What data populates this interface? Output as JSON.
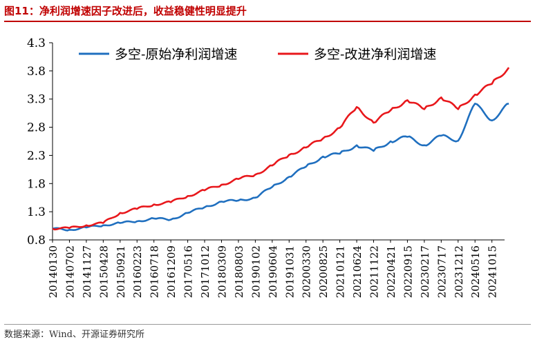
{
  "figure": {
    "title": "图11：净利润增速因子改进后，收益稳健性明显提升",
    "source": "数据来源：Wind、开源证券研究所"
  },
  "colors": {
    "series_original": "#1f6fbf",
    "series_improved": "#e8171b",
    "title": "#c00000",
    "axis": "#000000"
  },
  "chart_data": {
    "type": "line",
    "title": "",
    "xlabel": "",
    "ylabel": "",
    "ylim": [
      0.8,
      4.3
    ],
    "yticks": [
      0.8,
      1.3,
      1.8,
      2.3,
      2.8,
      3.3,
      3.8,
      4.3
    ],
    "ytick_labels": [
      "0.8",
      "1.3",
      "1.8",
      "2.3",
      "2.8",
      "3.3",
      "3.8",
      "4.3"
    ],
    "xticks": [
      "20140130",
      "20140702",
      "20141127",
      "20150428",
      "20150921",
      "20160223",
      "20160718",
      "20161209",
      "20170516",
      "20171012",
      "20180309",
      "20180803",
      "20190102",
      "20190604",
      "20191031",
      "20200330",
      "20200825",
      "20210121",
      "20210624",
      "20211122",
      "20220421",
      "20220915",
      "20230217",
      "20230717",
      "20231212",
      "20240516",
      "20241015"
    ],
    "legend_position": "top",
    "grid": false,
    "x": [
      "20140130",
      "20140702",
      "20141127",
      "20150428",
      "20150921",
      "20160223",
      "20160718",
      "20161209",
      "20170516",
      "20171012",
      "20180309",
      "20180803",
      "20190102",
      "20190604",
      "20191031",
      "20200330",
      "20200825",
      "20210121",
      "20210624",
      "20211122",
      "20220421",
      "20220915",
      "20230217",
      "20230717",
      "20231212",
      "20240516",
      "20241015",
      "20250210"
    ],
    "series": [
      {
        "name": "多空-原始净利润增速",
        "values": [
          1.0,
          0.98,
          1.02,
          1.06,
          1.1,
          1.13,
          1.18,
          1.16,
          1.28,
          1.38,
          1.48,
          1.5,
          1.55,
          1.74,
          1.92,
          2.1,
          2.28,
          2.33,
          2.48,
          2.38,
          2.55,
          2.63,
          2.48,
          2.65,
          2.56,
          3.22,
          2.92,
          3.22
        ]
      },
      {
        "name": "多空-改进净利润增速",
        "values": [
          1.0,
          1.01,
          1.06,
          1.1,
          1.28,
          1.35,
          1.43,
          1.47,
          1.58,
          1.68,
          1.78,
          1.88,
          1.96,
          2.12,
          2.31,
          2.44,
          2.6,
          2.79,
          3.16,
          2.88,
          3.1,
          3.28,
          3.12,
          3.33,
          3.12,
          3.38,
          3.57,
          3.86
        ]
      }
    ]
  }
}
